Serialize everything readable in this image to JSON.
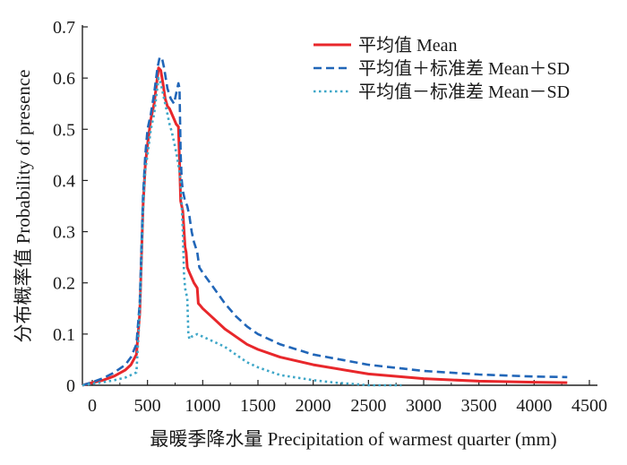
{
  "chart_data": {
    "type": "line",
    "xlabel": "最暖季降水量 Precipitation of warmest quarter (mm)",
    "ylabel": "分布概率值 Probability of presence",
    "xlim": [
      0,
      4500
    ],
    "ylim": [
      0,
      0.7
    ],
    "xticks": [
      "0",
      "500",
      "1000",
      "1500",
      "2000",
      "2500",
      "3000",
      "3500",
      "4000",
      "4500"
    ],
    "yticks": [
      "0",
      "0.1",
      "0.2",
      "0.3",
      "0.4",
      "0.5",
      "0.6",
      "0.7"
    ],
    "grid": false,
    "legend_position": "top-right",
    "series": [
      {
        "name": "平均值 Mean",
        "color": "#e8272b",
        "style": "solid",
        "x": [
          -100,
          0,
          100,
          200,
          300,
          350,
          400,
          430,
          460,
          480,
          500,
          530,
          560,
          600,
          620,
          640,
          660,
          680,
          700,
          720,
          740,
          760,
          780,
          790,
          800,
          810,
          820,
          840,
          850,
          860,
          880,
          900,
          920,
          950,
          960,
          980,
          1000,
          1100,
          1200,
          1300,
          1400,
          1500,
          1700,
          2000,
          2500,
          3000,
          3500,
          4000,
          4300
        ],
        "values": [
          0.0,
          0.005,
          0.01,
          0.018,
          0.03,
          0.04,
          0.06,
          0.14,
          0.35,
          0.43,
          0.47,
          0.52,
          0.55,
          0.62,
          0.615,
          0.59,
          0.56,
          0.545,
          0.54,
          0.53,
          0.52,
          0.51,
          0.505,
          0.44,
          0.36,
          0.35,
          0.34,
          0.27,
          0.26,
          0.23,
          0.22,
          0.21,
          0.2,
          0.19,
          0.16,
          0.155,
          0.15,
          0.13,
          0.11,
          0.095,
          0.08,
          0.07,
          0.055,
          0.04,
          0.022,
          0.013,
          0.008,
          0.006,
          0.005
        ]
      },
      {
        "name": "平均值＋标准差 Mean＋SD",
        "color": "#2166b8",
        "style": "dashed",
        "x": [
          -100,
          0,
          100,
          200,
          300,
          350,
          400,
          430,
          460,
          480,
          500,
          530,
          560,
          590,
          610,
          630,
          650,
          680,
          710,
          740,
          760,
          780,
          790,
          800,
          810,
          820,
          840,
          860,
          880,
          900,
          920,
          950,
          970,
          1000,
          1100,
          1200,
          1300,
          1400,
          1500,
          1700,
          2000,
          2500,
          3000,
          3500,
          4000,
          4300
        ],
        "values": [
          0.0,
          0.006,
          0.014,
          0.025,
          0.04,
          0.055,
          0.08,
          0.16,
          0.37,
          0.45,
          0.5,
          0.53,
          0.57,
          0.62,
          0.64,
          0.64,
          0.62,
          0.58,
          0.56,
          0.55,
          0.57,
          0.59,
          0.58,
          0.45,
          0.4,
          0.38,
          0.36,
          0.35,
          0.33,
          0.3,
          0.28,
          0.26,
          0.23,
          0.22,
          0.19,
          0.16,
          0.135,
          0.115,
          0.1,
          0.08,
          0.06,
          0.04,
          0.028,
          0.021,
          0.017,
          0.016
        ]
      },
      {
        "name": "平均值－标准差 Mean－SD",
        "color": "#3fa7c8",
        "style": "dotted",
        "x": [
          -100,
          0,
          100,
          200,
          300,
          350,
          400,
          430,
          460,
          480,
          500,
          530,
          560,
          600,
          620,
          640,
          660,
          680,
          700,
          720,
          740,
          760,
          780,
          800,
          820,
          830,
          840,
          850,
          860,
          870,
          880,
          900,
          950,
          1000,
          1100,
          1200,
          1300,
          1400,
          1500,
          1700,
          2000,
          2200,
          2400,
          2500,
          2800
        ],
        "values": [
          0.0,
          0.003,
          0.006,
          0.01,
          0.015,
          0.02,
          0.025,
          0.14,
          0.34,
          0.42,
          0.45,
          0.5,
          0.53,
          0.6,
          0.59,
          0.57,
          0.55,
          0.53,
          0.51,
          0.495,
          0.475,
          0.455,
          0.43,
          0.4,
          0.3,
          0.22,
          0.19,
          0.18,
          0.17,
          0.1,
          0.09,
          0.095,
          0.1,
          0.095,
          0.085,
          0.075,
          0.06,
          0.045,
          0.035,
          0.02,
          0.01,
          0.005,
          0.002,
          0.0,
          0.0
        ]
      }
    ]
  }
}
